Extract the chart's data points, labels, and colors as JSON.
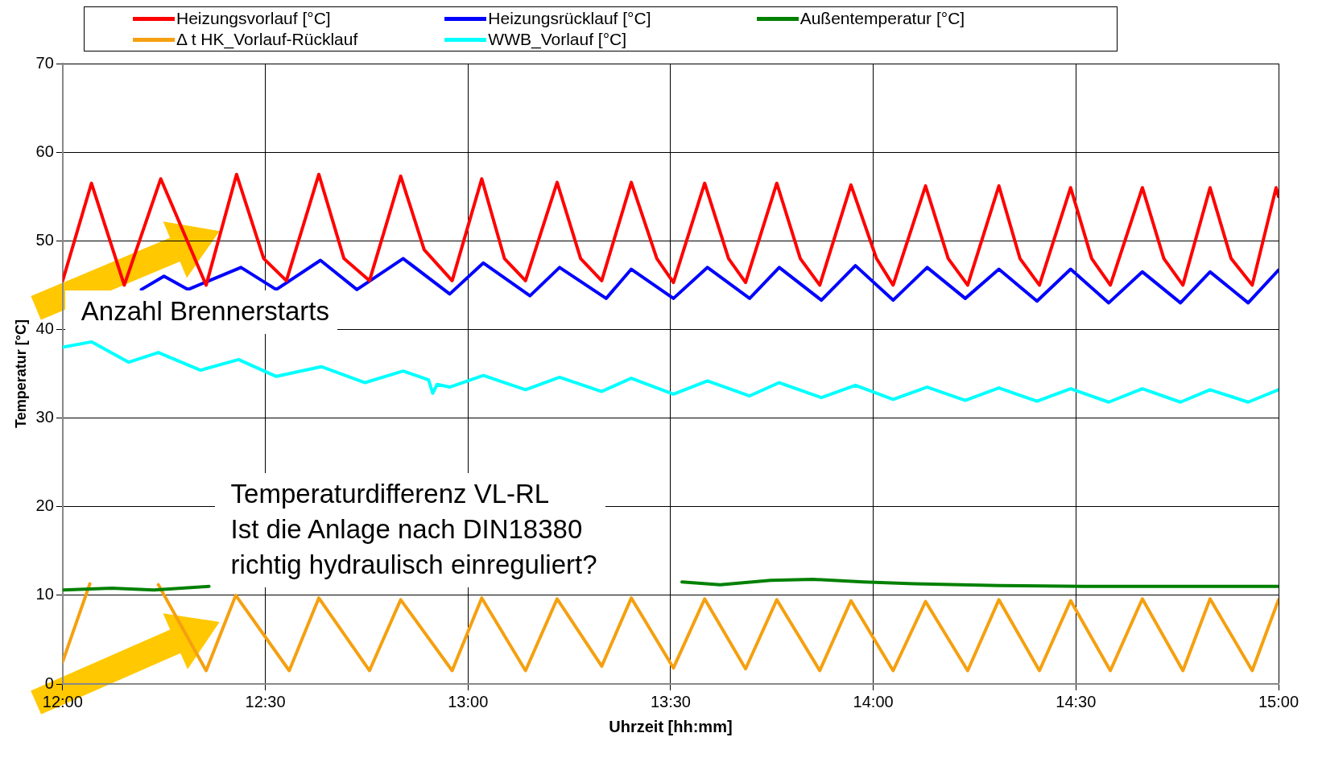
{
  "chart_data": {
    "type": "line",
    "xlabel": "Uhrzeit [hh:mm]",
    "ylabel": "Temperatur [°C]",
    "legend": "top",
    "grid": true,
    "marker": "none",
    "line_style": "solid",
    "xlim": [
      12,
      15
    ],
    "xticks": [
      {
        "value": 12,
        "label": "12:00"
      },
      {
        "value": 12.5,
        "label": "12:30"
      },
      {
        "value": 13,
        "label": "13:00"
      },
      {
        "value": 13.5,
        "label": "13:30"
      },
      {
        "value": 14,
        "label": "14:00"
      },
      {
        "value": 14.5,
        "label": "14:30"
      },
      {
        "value": 15,
        "label": "15:00"
      }
    ],
    "ylim": [
      0,
      70
    ],
    "yticks": [
      0,
      10,
      20,
      30,
      40,
      50,
      60,
      70
    ],
    "annotations": [
      "Anzahl Brennerstarts",
      "Temperaturdifferenz VL-RL\nIst die Anlage nach DIN18380\nrichtig hydraulisch einreguliert?"
    ],
    "series": [
      {
        "name": "Heizungsvorlauf [°C]",
        "color": "#ff0000",
        "x": [
          12.0,
          12.071,
          12.152,
          12.242,
          12.354,
          12.429,
          12.496,
          12.552,
          12.632,
          12.694,
          12.757,
          12.834,
          12.892,
          12.961,
          13.034,
          13.09,
          13.142,
          13.22,
          13.278,
          13.33,
          13.403,
          13.466,
          13.507,
          13.584,
          13.643,
          13.685,
          13.762,
          13.82,
          13.868,
          13.945,
          14.008,
          14.049,
          14.129,
          14.185,
          14.233,
          14.31,
          14.362,
          14.41,
          14.487,
          14.539,
          14.585,
          14.664,
          14.717,
          14.764,
          14.831,
          14.883,
          14.935,
          14.994,
          15.0
        ],
        "values": [
          45.5,
          56.5,
          45,
          57,
          45,
          57.5,
          48,
          45.5,
          57.5,
          48,
          45.5,
          57.3,
          49,
          45.5,
          57,
          48,
          45.5,
          56.6,
          48,
          45.5,
          56.6,
          48,
          45.3,
          56.5,
          48,
          45.3,
          56.5,
          48,
          45,
          56.3,
          48,
          45,
          56.2,
          48,
          45,
          56.2,
          48,
          45,
          56,
          48,
          45,
          56,
          48,
          45,
          56,
          48,
          45,
          56,
          55
        ]
      },
      {
        "name": "Heizungsrücklauf [°C]",
        "color": "#0000ff",
        "x": [
          12.194,
          12.25,
          12.309,
          12.44,
          12.527,
          12.636,
          12.726,
          12.84,
          12.955,
          13.038,
          13.153,
          13.226,
          13.341,
          13.403,
          13.507,
          13.591,
          13.695,
          13.768,
          13.872,
          13.956,
          14.049,
          14.133,
          14.227,
          14.31,
          14.404,
          14.487,
          14.581,
          14.664,
          14.758,
          14.831,
          14.925,
          15.0
        ],
        "values": [
          44.5,
          46,
          44.5,
          47,
          44.5,
          47.8,
          44.5,
          48,
          44,
          47.5,
          43.8,
          47,
          43.5,
          46.8,
          43.5,
          47,
          43.5,
          47,
          43.3,
          47.2,
          43.3,
          47,
          43.5,
          46.8,
          43.2,
          46.8,
          43,
          46.5,
          43,
          46.5,
          43,
          46.7
        ]
      },
      {
        "name": "Außentemperatur [°C]",
        "color": "#008000",
        "x": [
          12.0,
          12.121,
          12.225,
          12.361,
          12.4,
          13.528,
          13.622,
          13.747,
          13.851,
          13.976,
          14.101,
          14.31,
          14.518,
          14.727,
          15.0
        ],
        "values": [
          10.6,
          10.8,
          10.6,
          11,
          null,
          11.5,
          11.2,
          11.7,
          11.8,
          11.5,
          11.3,
          11.1,
          11,
          11,
          11
        ]
      },
      {
        "name": "Δ t HK_Vorlauf-Rücklauf",
        "color": "#f5a010",
        "x": [
          12.0,
          12.067,
          12.152,
          12.236,
          12.354,
          12.427,
          12.559,
          12.632,
          12.757,
          12.834,
          12.961,
          13.034,
          13.142,
          13.22,
          13.33,
          13.403,
          13.507,
          13.584,
          13.685,
          13.762,
          13.868,
          13.945,
          14.049,
          14.129,
          14.233,
          14.31,
          14.41,
          14.487,
          14.585,
          14.664,
          14.764,
          14.831,
          14.935,
          15.0
        ],
        "values": [
          2.5,
          11.3,
          null,
          11.2,
          1.5,
          10,
          1.5,
          9.7,
          1.5,
          9.5,
          1.5,
          9.7,
          1.5,
          9.6,
          2,
          9.7,
          1.8,
          9.6,
          1.7,
          9.5,
          1.5,
          9.4,
          1.5,
          9.3,
          1.5,
          9.5,
          1.5,
          9.4,
          1.5,
          9.6,
          1.5,
          9.6,
          1.5,
          9.5
        ]
      },
      {
        "name": "WWB_Vorlauf [°C]",
        "color": "#00ffff",
        "x": [
          12.0,
          12.071,
          12.163,
          12.236,
          12.34,
          12.434,
          12.527,
          12.638,
          12.746,
          12.84,
          12.903,
          12.913,
          12.924,
          12.955,
          13.038,
          13.142,
          13.226,
          13.33,
          13.403,
          13.507,
          13.591,
          13.695,
          13.768,
          13.872,
          13.956,
          14.049,
          14.133,
          14.227,
          14.31,
          14.404,
          14.487,
          14.581,
          14.664,
          14.758,
          14.831,
          14.925,
          15.0
        ],
        "values": [
          38,
          38.6,
          36.3,
          37.4,
          35.4,
          36.6,
          34.7,
          35.8,
          34,
          35.3,
          34.3,
          32.8,
          33.8,
          33.5,
          34.8,
          33.2,
          34.6,
          33,
          34.5,
          32.7,
          34.2,
          32.5,
          34,
          32.3,
          33.7,
          32.1,
          33.5,
          32,
          33.4,
          31.9,
          33.3,
          31.8,
          33.3,
          31.8,
          33.2,
          31.8,
          33.2
        ]
      }
    ]
  }
}
